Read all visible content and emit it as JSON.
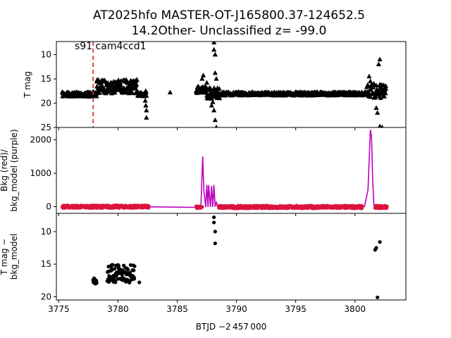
{
  "figure": {
    "title_line1": "AT2025hfo  MASTER-OT-J165800.37-124652.5",
    "title_line2": "14.2Other- Unclassified z= -99.0",
    "annotation": "s91 cam4ccd1",
    "xlabel": "BTJD −2 457 000"
  },
  "chart_data": [
    {
      "type": "scatter",
      "panel": "top",
      "ylabel": "T mag",
      "xlim": [
        3774.8,
        3804.3
      ],
      "ylim": [
        25,
        7.3
      ],
      "y_inverted": true,
      "xticks": [
        3775,
        3780,
        3785,
        3790,
        3795,
        3800
      ],
      "yticks": [
        10,
        15,
        20,
        25
      ],
      "marker": "triangle",
      "vline": {
        "x": 3777.9,
        "color": "#d62728",
        "style": "dashed"
      },
      "series": [
        {
          "segments": [
            {
              "x_start": 3775.3,
              "x_end": 3778.2,
              "y": 18.2,
              "spread": 0.5
            },
            {
              "x_start": 3778.2,
              "x_end": 3781.6,
              "y": 16.6,
              "spread": 1.4
            },
            {
              "x_start": 3781.6,
              "x_end": 3782.4,
              "y": 18.0,
              "spread": 0.6
            },
            {
              "x_start": 3786.6,
              "x_end": 3787.4,
              "y": 17.2,
              "spread": 0.8
            },
            {
              "x_start": 3787.4,
              "x_end": 3788.6,
              "y": 18.0,
              "spread": 1.2
            },
            {
              "x_start": 3788.6,
              "x_end": 3801.0,
              "y": 18.1,
              "spread": 0.35
            },
            {
              "x_start": 3801.0,
              "x_end": 3802.6,
              "y": 17.6,
              "spread": 1.4
            }
          ],
          "points": [
            [
              3782.3,
              19.5
            ],
            [
              3782.35,
              20.5
            ],
            [
              3782.4,
              21.5
            ],
            [
              3782.4,
              23.0
            ],
            [
              3784.4,
              17.8
            ],
            [
              3787.1,
              15.0
            ],
            [
              3787.2,
              14.3
            ],
            [
              3787.5,
              15.8
            ],
            [
              3788.1,
              7.5
            ],
            [
              3788.1,
              9.0
            ],
            [
              3788.2,
              10.0
            ],
            [
              3788.2,
              13.8
            ],
            [
              3788.3,
              15.0
            ],
            [
              3788.1,
              21.5
            ],
            [
              3788.2,
              23.5
            ],
            [
              3788.3,
              25.0
            ],
            [
              3787.9,
              20.5
            ],
            [
              3788.0,
              19.8
            ],
            [
              3801.2,
              14.5
            ],
            [
              3801.3,
              15.5
            ],
            [
              3801.6,
              16.0
            ],
            [
              3802.0,
              12.0
            ],
            [
              3802.1,
              11.0
            ],
            [
              3801.8,
              21.0
            ],
            [
              3801.9,
              22.0
            ],
            [
              3802.1,
              24.8
            ],
            [
              3802.3,
              25.0
            ],
            [
              3802.3,
              17.5
            ],
            [
              3802.6,
              17.0
            ]
          ]
        }
      ]
    },
    {
      "type": "line",
      "panel": "middle",
      "ylabel": "Bkg (red)/\nbkg_model (purple)",
      "xlim": [
        3774.8,
        3804.3
      ],
      "ylim": [
        -200,
        2370
      ],
      "yticks": [
        0,
        1000,
        2000
      ],
      "series": [
        {
          "color": "#bf00bf",
          "kind": "line",
          "x": [
            3775.3,
            3776.5,
            3777.9,
            3779.0,
            3780.5,
            3781.8,
            3782.4,
            3786.6,
            3787.0,
            3787.15,
            3787.25,
            3787.4,
            3787.5,
            3787.6,
            3787.65,
            3787.8,
            3787.9,
            3788.0,
            3788.1,
            3788.2,
            3788.3,
            3788.4,
            3788.6,
            3790.0,
            3795.0,
            3799.0,
            3800.8,
            3801.1,
            3801.3,
            3801.4,
            3801.5,
            3801.6,
            3801.7,
            3802.0,
            3802.6
          ],
          "y": [
            -10,
            0,
            10,
            -5,
            10,
            0,
            -5,
            -20,
            -10,
            1500,
            500,
            -10,
            650,
            -10,
            650,
            -10,
            620,
            -10,
            650,
            0,
            150,
            -10,
            -20,
            -10,
            -20,
            -30,
            0,
            500,
            2300,
            2100,
            800,
            30,
            -20,
            -20,
            -10
          ]
        },
        {
          "color": "#dc143c",
          "kind": "points",
          "segments": [
            {
              "x_start": 3775.3,
              "x_end": 3782.6,
              "y": 0,
              "spread": 40
            },
            {
              "x_start": 3786.6,
              "x_end": 3787.1,
              "y": -10,
              "spread": 30
            },
            {
              "x_start": 3788.5,
              "x_end": 3800.6,
              "y": -10,
              "spread": 40
            },
            {
              "x_start": 3801.7,
              "x_end": 3802.7,
              "y": -10,
              "spread": 40
            }
          ]
        }
      ]
    },
    {
      "type": "scatter",
      "panel": "bottom",
      "ylabel": "T mag −\nbkg_model",
      "xlim": [
        3774.8,
        3804.3
      ],
      "ylim": [
        20.5,
        7.2
      ],
      "y_inverted": true,
      "yticks": [
        10,
        15,
        20
      ],
      "marker": "circle",
      "series": [
        {
          "segments": [
            {
              "x_start": 3777.9,
              "x_end": 3778.2,
              "y": 17.6,
              "spread": 0.5
            },
            {
              "x_start": 3779.1,
              "x_end": 3781.4,
              "y": 16.5,
              "spread": 1.4
            }
          ],
          "points": [
            [
              3781.8,
              17.8
            ],
            [
              3788.1,
              7.8
            ],
            [
              3788.1,
              8.6
            ],
            [
              3788.2,
              10.0
            ],
            [
              3788.2,
              11.8
            ],
            [
              3801.7,
              12.8
            ],
            [
              3801.8,
              12.5
            ],
            [
              3802.1,
              11.6
            ],
            [
              3801.9,
              20.1
            ]
          ]
        }
      ]
    }
  ]
}
